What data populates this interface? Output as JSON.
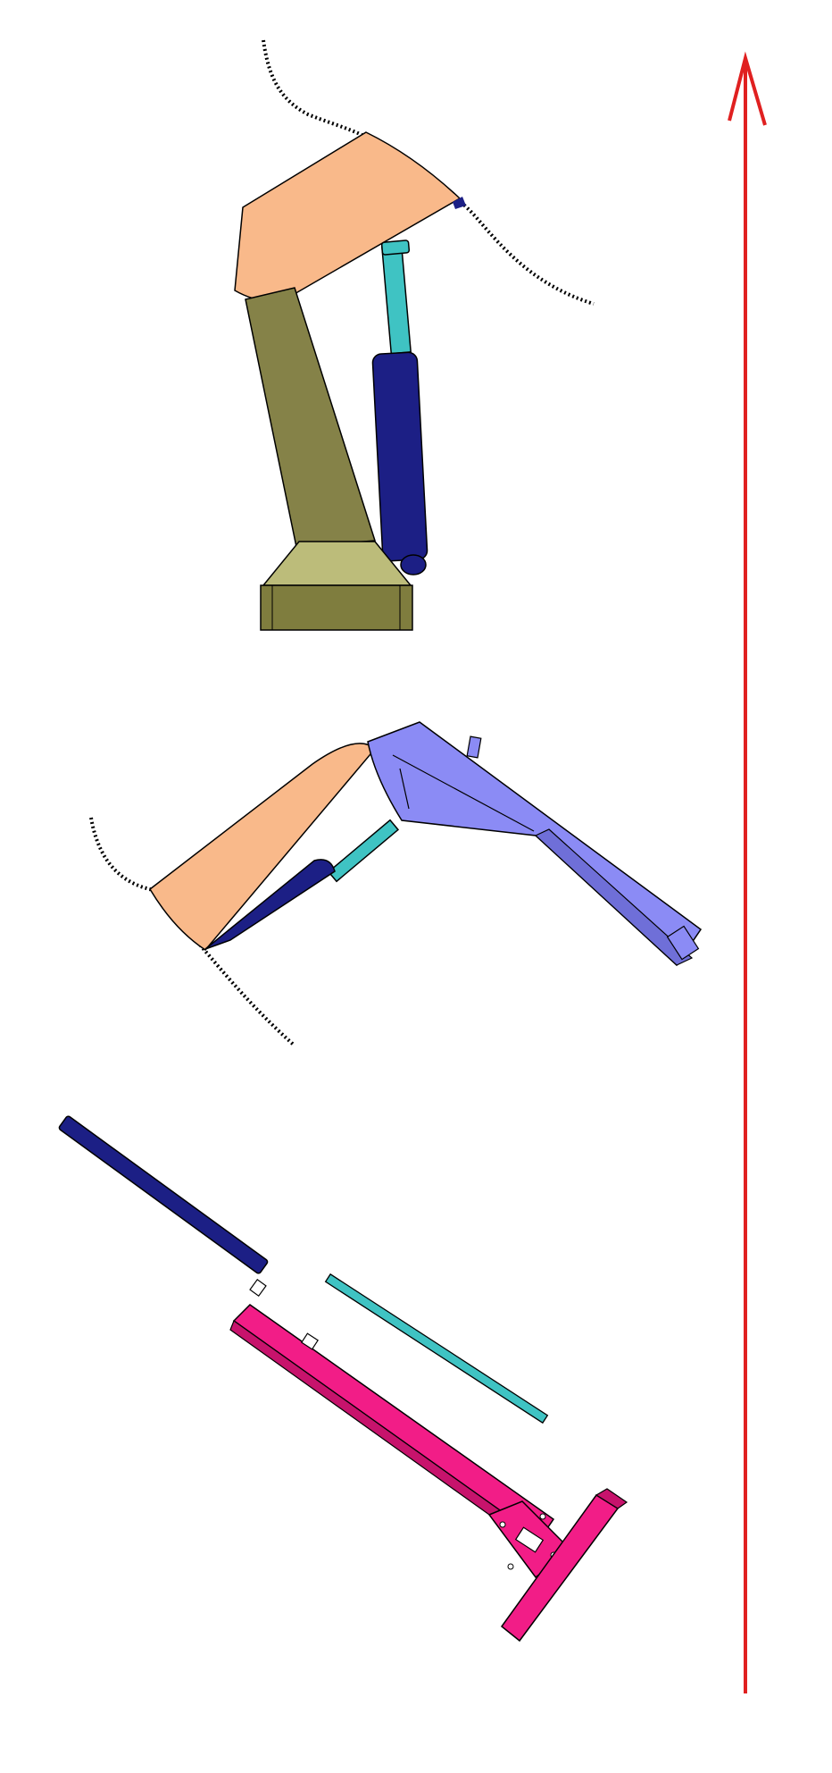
{
  "diagram": {
    "stages": [
      {
        "id": "stage-top",
        "parts": [
          "outline-curve",
          "upper-link",
          "lower-arm",
          "base-block",
          "hydraulic-cylinder",
          "cylinder-rod"
        ]
      },
      {
        "id": "stage-middle",
        "parts": [
          "outline-curve",
          "upper-link",
          "boom-arm",
          "hydraulic-cylinder",
          "cylinder-rod"
        ]
      },
      {
        "id": "stage-bottom",
        "parts": [
          "loose-tube",
          "slide-rail",
          "guide-rod",
          "end-plate",
          "mount-bracket"
        ]
      }
    ],
    "arrow": {
      "direction": "up"
    }
  },
  "colors": {
    "background": "#ffffff",
    "peach": "#f9b98a",
    "olive": "#858248",
    "olive_light": "#bcbc7a",
    "olive_dark": "#7f7d3e",
    "navy": "#1c1f85",
    "navy_dark": "#0e1160",
    "cyan": "#3fc3c3",
    "lavender": "#8b8bf5",
    "lavender_dark": "#6f6fd8",
    "magenta": "#f21d87",
    "magenta_dark": "#c7136c",
    "arrow_red": "#e02020",
    "outline": "#000000"
  }
}
